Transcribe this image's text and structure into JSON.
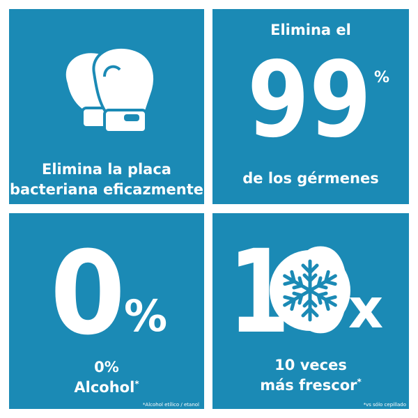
{
  "tiles": [
    {
      "lines": [
        "Elimina la placa",
        "bacteriana eficazmente"
      ]
    },
    {
      "top": "Elimina el",
      "big": "99",
      "unit": "%",
      "bottom": "de los gérmenes"
    },
    {
      "big": "0",
      "unit": "%",
      "lines": [
        "0%",
        "Alcohol"
      ],
      "mark": "*",
      "footnote": "*Alcohol etílico / etanol"
    },
    {
      "big": "10",
      "unit": "x",
      "lines": [
        "10 veces",
        "más frescor"
      ],
      "mark": "*",
      "footnote": "*vs sólo cepillado"
    }
  ]
}
